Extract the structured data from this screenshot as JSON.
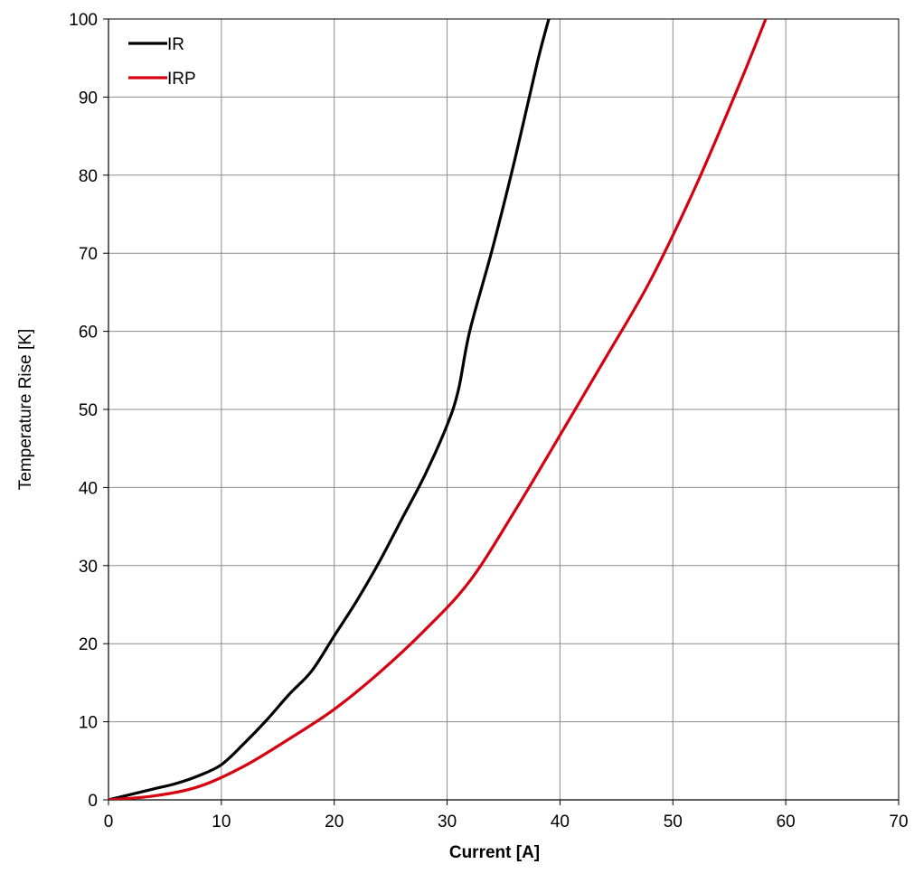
{
  "chart_data": {
    "type": "line",
    "title": "",
    "xlabel": "Current [A]",
    "ylabel": "Temperature Rise [K]",
    "xlim": [
      0,
      70
    ],
    "ylim": [
      0,
      100
    ],
    "xticks": [
      0,
      10,
      20,
      30,
      40,
      50,
      60,
      70
    ],
    "yticks": [
      0,
      10,
      20,
      30,
      40,
      50,
      60,
      70,
      80,
      90,
      100
    ],
    "grid": true,
    "legend_position": "top-left",
    "series": [
      {
        "name": "IR",
        "color": "#000000",
        "x": [
          0,
          2,
          4,
          6,
          8,
          10,
          12,
          14,
          16,
          18,
          20,
          22,
          24,
          26,
          28,
          30,
          31,
          32,
          34,
          36,
          38,
          39.2
        ],
        "y": [
          0,
          0.7,
          1.4,
          2.1,
          3.1,
          4.5,
          7.2,
          10.2,
          13.5,
          16.5,
          21,
          25.5,
          30.5,
          36,
          41.5,
          48,
          52.5,
          60,
          70.5,
          82,
          94.5,
          101
        ]
      },
      {
        "name": "IRP",
        "color": "#d60010",
        "x": [
          0,
          4,
          8,
          12,
          16,
          20,
          24,
          28,
          32,
          36,
          40,
          44,
          48,
          52,
          56,
          58.5
        ],
        "y": [
          0,
          0.5,
          1.7,
          4.3,
          7.8,
          11.6,
          16.3,
          21.7,
          28.0,
          37.0,
          46.7,
          56.5,
          66.5,
          78.5,
          92.0,
          101
        ]
      }
    ]
  }
}
